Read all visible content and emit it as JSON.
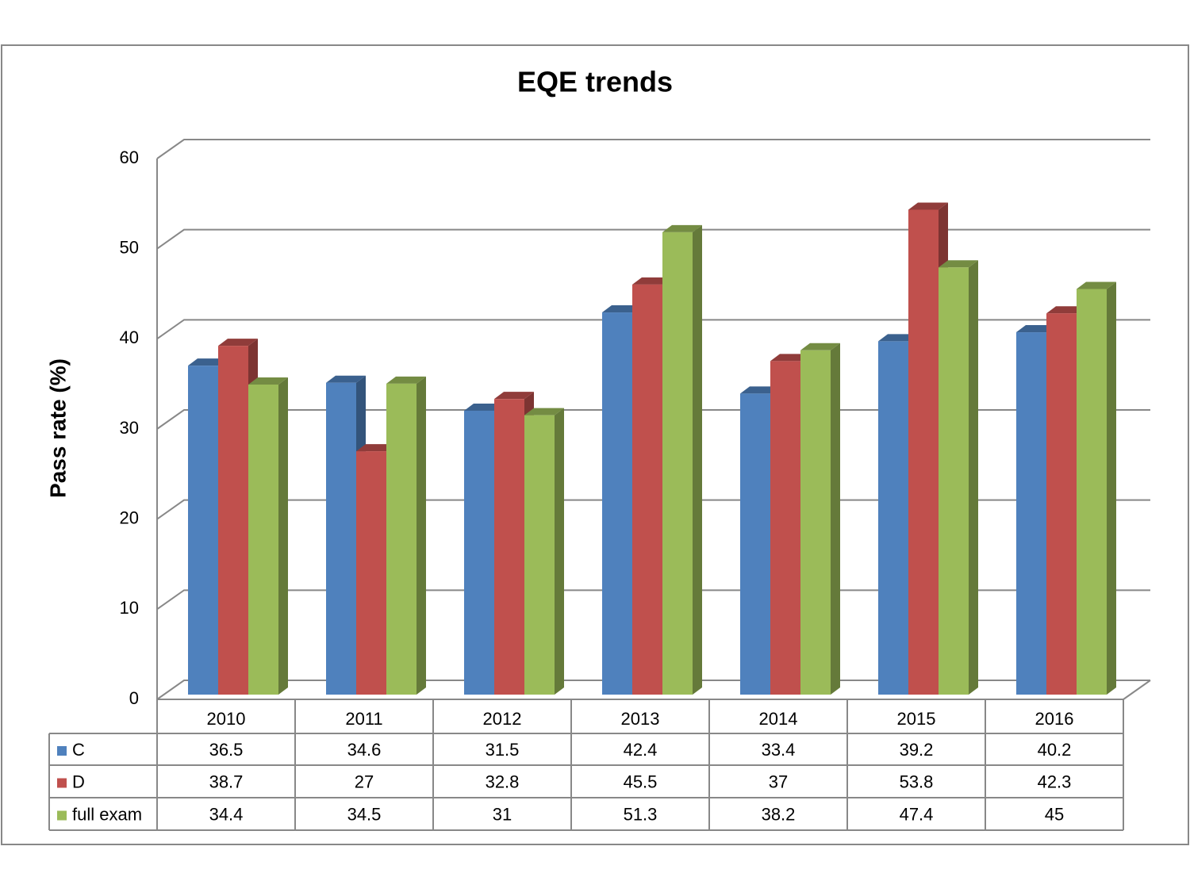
{
  "chart_data": {
    "type": "bar3d",
    "title": "EQE trends",
    "y_label": "Pass rate (%)",
    "categories": [
      "2010",
      "2011",
      "2012",
      "2013",
      "2014",
      "2015",
      "2016"
    ],
    "series": [
      {
        "name": "C",
        "color": "#4f81bd",
        "values": [
          36.5,
          34.6,
          31.5,
          42.4,
          33.4,
          39.2,
          40.2
        ]
      },
      {
        "name": "D",
        "color": "#c0504d",
        "values": [
          38.7,
          27,
          32.8,
          45.5,
          37,
          53.8,
          42.3
        ]
      },
      {
        "name": "full exam",
        "color": "#9bbb59",
        "values": [
          34.4,
          34.5,
          31,
          51.3,
          38.2,
          47.4,
          45
        ]
      }
    ],
    "ylim": [
      0,
      60
    ],
    "yticks": [
      0,
      10,
      20,
      30,
      40,
      50,
      60
    ],
    "grid": true,
    "data_table": true
  }
}
